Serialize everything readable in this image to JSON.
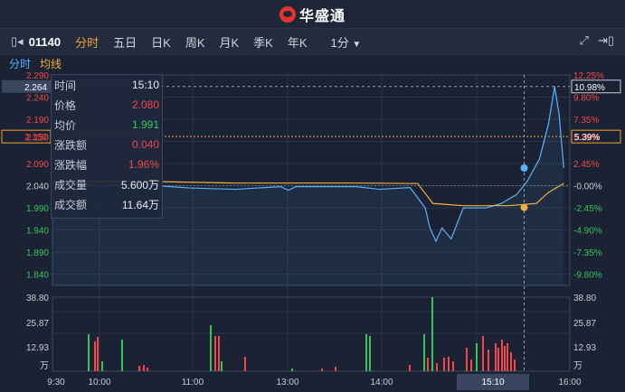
{
  "app": {
    "title": "华盛通"
  },
  "toolbar": {
    "code": "01140",
    "tabs": [
      "分时",
      "五日",
      "日K",
      "周K",
      "月K",
      "季K",
      "年K"
    ],
    "active_tab": "分时",
    "interval": "1分"
  },
  "subtabs": [
    "分时",
    "均线"
  ],
  "info": {
    "time_label": "时间",
    "time": "15:10",
    "price_label": "价格",
    "price": "2.080",
    "avg_label": "均价",
    "avg": "1.991",
    "chg_label": "涨跌额",
    "chg": "0.040",
    "chgpct_label": "涨跌幅",
    "chgpct": "1.96%",
    "vol_label": "成交量",
    "vol": "5.600万",
    "amt_label": "成交额",
    "amt": "11.64万"
  },
  "colors": {
    "up": "#f04848",
    "down": "#36c45a",
    "price_line": "#5ab4ff",
    "avg_line": "#f0b040"
  },
  "chart_data": {
    "type": "line",
    "price_axis": {
      "left_ticks": [
        "2.290",
        "2.240",
        "2.190",
        "2.150",
        "2.090",
        "2.040",
        "1.990",
        "1.940",
        "1.890",
        "1.840"
      ],
      "right_ticks": [
        "12.25%",
        "9.80%",
        "7.35%",
        "5.39%",
        "2.45%",
        "-0.00%",
        "-2.45%",
        "-4.90%",
        "-7.35%",
        "-9.80%"
      ],
      "cursor_left": "2.264",
      "cursor_right": "10.98%",
      "ref_left": "2.150",
      "ref_right": "5.39%"
    },
    "volume_axis": {
      "ticks": [
        "38.80",
        "25.87",
        "12.93"
      ],
      "unit": "万"
    },
    "x_ticks": [
      "9:30",
      "10:00",
      "11:00",
      "13:00",
      "14:00",
      "15:10",
      "16:00"
    ],
    "prev_close": 2.04,
    "price_series": [
      [
        0,
        2.045
      ],
      [
        10,
        2.045
      ],
      [
        30,
        2.04
      ],
      [
        60,
        2.042
      ],
      [
        90,
        2.035
      ],
      [
        120,
        2.032
      ],
      [
        150,
        2.038
      ],
      [
        155,
        2.03
      ],
      [
        160,
        2.038
      ],
      [
        200,
        2.038
      ],
      [
        215,
        2.032
      ],
      [
        235,
        2.036
      ],
      [
        245,
        1.99
      ],
      [
        248,
        1.945
      ],
      [
        252,
        1.915
      ],
      [
        256,
        1.945
      ],
      [
        262,
        1.92
      ],
      [
        270,
        1.99
      ],
      [
        285,
        1.99
      ],
      [
        295,
        2.0
      ],
      [
        305,
        2.02
      ],
      [
        312,
        2.05
      ],
      [
        320,
        2.1
      ],
      [
        326,
        2.18
      ],
      [
        330,
        2.264
      ],
      [
        333,
        2.2
      ],
      [
        336,
        2.08
      ]
    ],
    "avg_series": [
      [
        0,
        2.05
      ],
      [
        60,
        2.05
      ],
      [
        120,
        2.046
      ],
      [
        200,
        2.046
      ],
      [
        240,
        2.045
      ],
      [
        250,
        2.0
      ],
      [
        270,
        1.995
      ],
      [
        300,
        1.995
      ],
      [
        318,
        2.0
      ],
      [
        326,
        2.025
      ],
      [
        336,
        2.045
      ]
    ],
    "cursor_point": {
      "x": 310,
      "price": 2.08,
      "avg": 1.991
    }
  }
}
